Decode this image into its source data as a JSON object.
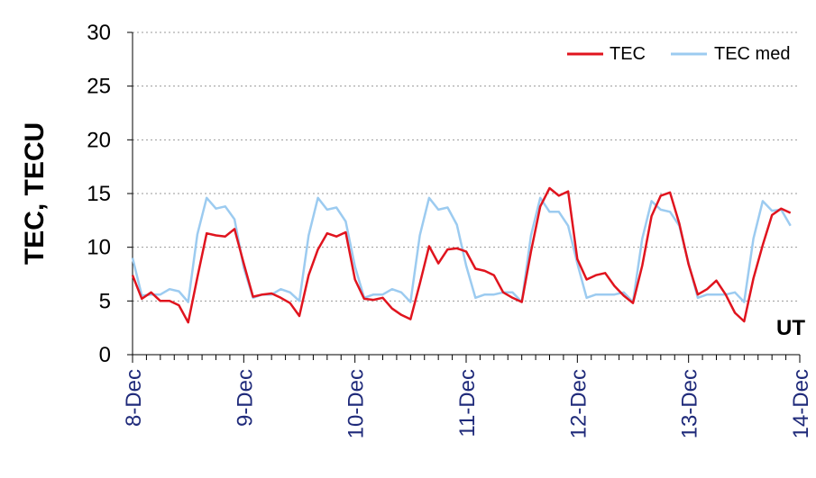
{
  "chart_data": {
    "type": "line",
    "ylabel": "TEC, TECU",
    "xlabel": "UT",
    "ylim": [
      0,
      30
    ],
    "yticks": [
      "0",
      "5",
      "10",
      "15",
      "20",
      "25",
      "30"
    ],
    "categories": [
      "8-Dec",
      "9-Dec",
      "10-Dec",
      "11-Dec",
      "12-Dec",
      "13-Dec",
      "14-Dec"
    ],
    "grid": true,
    "legend_position": "top-right",
    "x": [
      0,
      2,
      4,
      6,
      8,
      10,
      12,
      14,
      16,
      18,
      20,
      22,
      24,
      26,
      28,
      30,
      32,
      34,
      36,
      38,
      40,
      42,
      44,
      46,
      48,
      50,
      52,
      54,
      56,
      58,
      60,
      62,
      64,
      66,
      68,
      70,
      72,
      74,
      76,
      78,
      80,
      82,
      84,
      86,
      88,
      90,
      92,
      94,
      96,
      98,
      100,
      102,
      104,
      106,
      108,
      110,
      112,
      114,
      116,
      118,
      120,
      122,
      124,
      126,
      128,
      130,
      132,
      134,
      136,
      138,
      140,
      142
    ],
    "series": [
      {
        "name": "TEC",
        "color": "#e0141e",
        "values": [
          7.4,
          5.2,
          5.8,
          5.0,
          5.0,
          4.6,
          3.0,
          7.2,
          11.3,
          11.1,
          11.0,
          11.7,
          8.5,
          5.4,
          5.6,
          5.7,
          5.3,
          4.8,
          3.6,
          7.4,
          9.8,
          11.3,
          11.0,
          11.4,
          7.0,
          5.2,
          5.1,
          5.3,
          4.3,
          3.7,
          3.3,
          6.6,
          10.1,
          8.5,
          9.8,
          9.9,
          9.6,
          8.0,
          7.8,
          7.4,
          5.8,
          5.3,
          4.9,
          9.6,
          13.8,
          15.5,
          14.8,
          15.2,
          8.9,
          7.0,
          7.4,
          7.6,
          6.4,
          5.5,
          4.8,
          8.3,
          12.9,
          14.8,
          15.1,
          12.2,
          8.4,
          5.6,
          6.1,
          6.9,
          5.6,
          3.9,
          3.1,
          7.1,
          10.2,
          13.0,
          13.6,
          13.2
        ]
      },
      {
        "name": "TEC med",
        "color": "#9ccbf0",
        "values": [
          9.0,
          5.5,
          5.6,
          5.6,
          6.1,
          5.9,
          4.9,
          11.2,
          14.6,
          13.6,
          13.8,
          12.6,
          8.1,
          5.3,
          5.6,
          5.6,
          6.1,
          5.8,
          5.0,
          11.1,
          14.6,
          13.5,
          13.7,
          12.4,
          8.2,
          5.3,
          5.6,
          5.6,
          6.1,
          5.8,
          4.9,
          11.1,
          14.6,
          13.5,
          13.7,
          12.1,
          8.3,
          5.3,
          5.6,
          5.6,
          5.8,
          5.8,
          4.9,
          11.1,
          14.6,
          13.3,
          13.3,
          12.0,
          8.5,
          5.3,
          5.6,
          5.6,
          5.6,
          5.8,
          4.9,
          10.8,
          14.3,
          13.5,
          13.3,
          12.0,
          8.5,
          5.3,
          5.6,
          5.6,
          5.6,
          5.8,
          4.9,
          10.8,
          14.3,
          13.4,
          13.5,
          12.0
        ]
      }
    ]
  }
}
